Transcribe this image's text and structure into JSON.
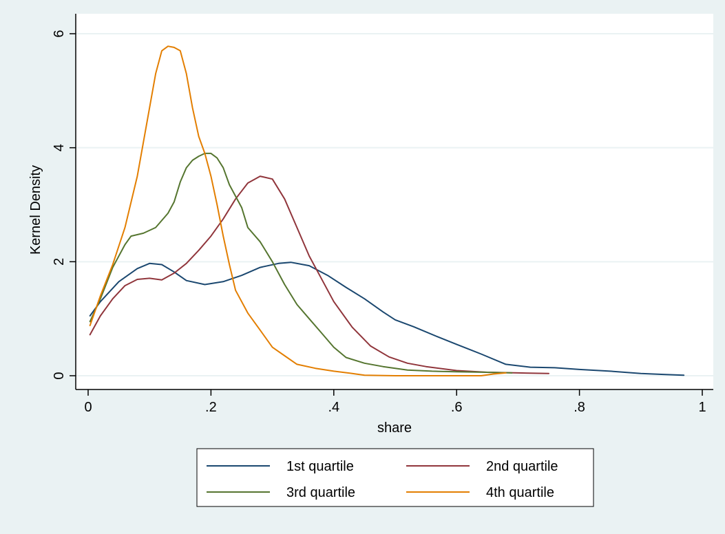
{
  "chart_data": {
    "type": "line",
    "title": "",
    "xlabel": "share",
    "ylabel": "Kernel Density",
    "xlim": [
      0,
      1
    ],
    "ylim": [
      0,
      6
    ],
    "x_ticks": [
      0,
      0.2,
      0.4,
      0.6,
      0.8,
      1
    ],
    "x_tick_labels": [
      "0",
      ".2",
      ".4",
      ".6",
      ".8",
      "1"
    ],
    "y_ticks": [
      0,
      2,
      4,
      6
    ],
    "y_tick_labels": [
      "0",
      "2",
      "4",
      "6"
    ],
    "grid": "horizontal",
    "legend_position": "bottom",
    "series": [
      {
        "name": "1st quartile",
        "color": "#1a476f",
        "points": [
          [
            0.003,
            1.05
          ],
          [
            0.02,
            1.3
          ],
          [
            0.05,
            1.65
          ],
          [
            0.08,
            1.88
          ],
          [
            0.1,
            1.97
          ],
          [
            0.12,
            1.95
          ],
          [
            0.14,
            1.82
          ],
          [
            0.16,
            1.67
          ],
          [
            0.19,
            1.6
          ],
          [
            0.22,
            1.65
          ],
          [
            0.25,
            1.76
          ],
          [
            0.28,
            1.9
          ],
          [
            0.31,
            1.97
          ],
          [
            0.33,
            1.99
          ],
          [
            0.36,
            1.93
          ],
          [
            0.39,
            1.76
          ],
          [
            0.42,
            1.55
          ],
          [
            0.45,
            1.35
          ],
          [
            0.48,
            1.12
          ],
          [
            0.5,
            0.98
          ],
          [
            0.53,
            0.86
          ],
          [
            0.57,
            0.68
          ],
          [
            0.6,
            0.55
          ],
          [
            0.64,
            0.38
          ],
          [
            0.68,
            0.2
          ],
          [
            0.72,
            0.15
          ],
          [
            0.76,
            0.14
          ],
          [
            0.8,
            0.11
          ],
          [
            0.85,
            0.08
          ],
          [
            0.9,
            0.04
          ],
          [
            0.94,
            0.02
          ],
          [
            0.97,
            0.01
          ]
        ]
      },
      {
        "name": "2nd quartile",
        "color": "#90353b",
        "points": [
          [
            0.003,
            0.72
          ],
          [
            0.02,
            1.05
          ],
          [
            0.04,
            1.35
          ],
          [
            0.06,
            1.58
          ],
          [
            0.08,
            1.69
          ],
          [
            0.1,
            1.71
          ],
          [
            0.12,
            1.68
          ],
          [
            0.14,
            1.8
          ],
          [
            0.16,
            1.97
          ],
          [
            0.18,
            2.2
          ],
          [
            0.2,
            2.45
          ],
          [
            0.22,
            2.75
          ],
          [
            0.24,
            3.1
          ],
          [
            0.26,
            3.38
          ],
          [
            0.28,
            3.5
          ],
          [
            0.3,
            3.45
          ],
          [
            0.32,
            3.1
          ],
          [
            0.34,
            2.6
          ],
          [
            0.36,
            2.1
          ],
          [
            0.38,
            1.7
          ],
          [
            0.4,
            1.3
          ],
          [
            0.43,
            0.85
          ],
          [
            0.46,
            0.52
          ],
          [
            0.49,
            0.33
          ],
          [
            0.52,
            0.22
          ],
          [
            0.55,
            0.16
          ],
          [
            0.6,
            0.09
          ],
          [
            0.65,
            0.06
          ],
          [
            0.7,
            0.05
          ],
          [
            0.75,
            0.04
          ]
        ]
      },
      {
        "name": "3rd quartile",
        "color": "#55752f",
        "points": [
          [
            0.003,
            0.95
          ],
          [
            0.02,
            1.35
          ],
          [
            0.04,
            1.9
          ],
          [
            0.06,
            2.3
          ],
          [
            0.07,
            2.45
          ],
          [
            0.09,
            2.5
          ],
          [
            0.11,
            2.6
          ],
          [
            0.13,
            2.85
          ],
          [
            0.14,
            3.05
          ],
          [
            0.15,
            3.4
          ],
          [
            0.16,
            3.65
          ],
          [
            0.17,
            3.78
          ],
          [
            0.18,
            3.85
          ],
          [
            0.19,
            3.9
          ],
          [
            0.2,
            3.9
          ],
          [
            0.21,
            3.82
          ],
          [
            0.22,
            3.65
          ],
          [
            0.23,
            3.35
          ],
          [
            0.25,
            2.95
          ],
          [
            0.26,
            2.6
          ],
          [
            0.28,
            2.35
          ],
          [
            0.3,
            2.0
          ],
          [
            0.32,
            1.6
          ],
          [
            0.34,
            1.25
          ],
          [
            0.36,
            1.0
          ],
          [
            0.38,
            0.75
          ],
          [
            0.4,
            0.5
          ],
          [
            0.42,
            0.32
          ],
          [
            0.45,
            0.22
          ],
          [
            0.48,
            0.16
          ],
          [
            0.52,
            0.1
          ],
          [
            0.56,
            0.08
          ],
          [
            0.6,
            0.07
          ],
          [
            0.65,
            0.06
          ],
          [
            0.69,
            0.05
          ]
        ]
      },
      {
        "name": "4th quartile",
        "color": "#e37e00",
        "points": [
          [
            0.003,
            0.88
          ],
          [
            0.02,
            1.4
          ],
          [
            0.04,
            1.95
          ],
          [
            0.06,
            2.6
          ],
          [
            0.08,
            3.5
          ],
          [
            0.09,
            4.1
          ],
          [
            0.1,
            4.7
          ],
          [
            0.11,
            5.3
          ],
          [
            0.12,
            5.7
          ],
          [
            0.13,
            5.78
          ],
          [
            0.14,
            5.76
          ],
          [
            0.15,
            5.7
          ],
          [
            0.16,
            5.3
          ],
          [
            0.17,
            4.7
          ],
          [
            0.18,
            4.2
          ],
          [
            0.19,
            3.9
          ],
          [
            0.2,
            3.5
          ],
          [
            0.21,
            3.0
          ],
          [
            0.22,
            2.45
          ],
          [
            0.23,
            1.95
          ],
          [
            0.24,
            1.5
          ],
          [
            0.26,
            1.1
          ],
          [
            0.28,
            0.8
          ],
          [
            0.3,
            0.5
          ],
          [
            0.32,
            0.35
          ],
          [
            0.34,
            0.2
          ],
          [
            0.37,
            0.13
          ],
          [
            0.4,
            0.08
          ],
          [
            0.43,
            0.04
          ],
          [
            0.45,
            0.01
          ],
          [
            0.5,
            0.0
          ],
          [
            0.55,
            0.0
          ],
          [
            0.6,
            0.0
          ],
          [
            0.64,
            0.0
          ],
          [
            0.66,
            0.03
          ],
          [
            0.68,
            0.05
          ]
        ]
      }
    ]
  }
}
